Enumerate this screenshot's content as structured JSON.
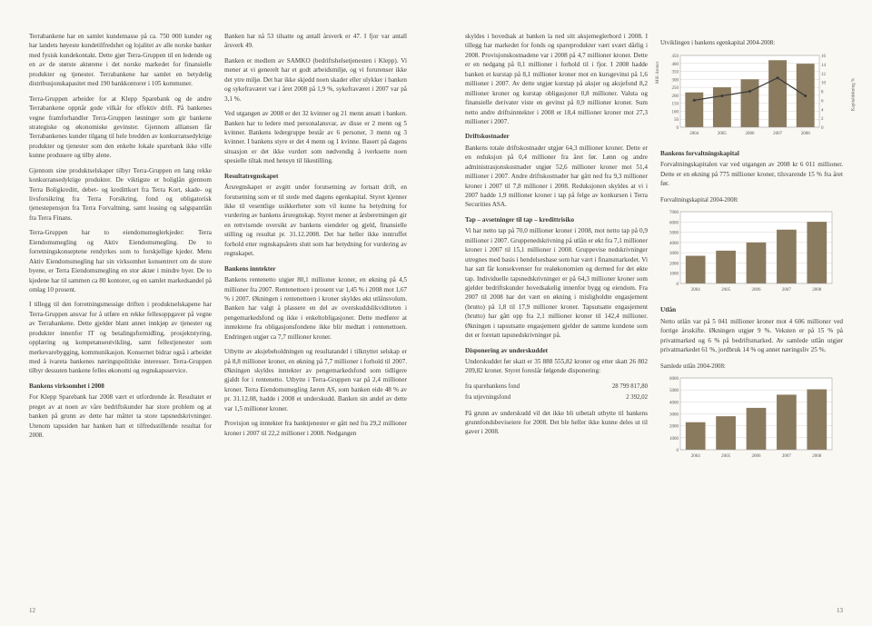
{
  "left_page": {
    "page_num": "12",
    "col1": {
      "p1": "Terrabankene har en samlet kundemasse på ca. 750 000 kunder og har landets høyeste kundetilfredshet og lojalitet av alle norske banker med fysisk kundekontakt. Dette gjør Terra-Gruppen til en ledende og en av de største aktørene i det norske markedet for finansielle produkter og tjenester. Terrabankene har samlet en betydelig distribusjonskapasitet med 190 bankkontorer i 105 kommuner.",
      "p2": "Terra-Gruppen arbeider for at Klepp Sparebank og de andre Terrabankene oppnår gode vilkår for effektiv drift. På bankenes vegne framforhandler Terra-Gruppen løsninger som gir bankene strategiske og økonomiske gevinster. Gjennom alliansen får Terrabankenes kunder tilgang til hele bredden av konkurransedyktige produkter og tjenester som den enkelte lokale sparebank ikke ville kunne produsere og tilby alene.",
      "p3": "Gjennom sine produktselskaper tilbyr Terra-Gruppen en lang rekke konkurransedyktige produkter. De viktigste er boliglån gjennom Terra Boligkreditt, debet- og kredittkort fra Terra Kort, skade- og livsforsikring fra Terra Forsikring, fond og obligatorisk tjenestepensjon fra Terra Forvaltning, samt leasing og salgspantlån fra Terra Finans.",
      "p4": "Terra-Gruppen har to eiendomsmeglerkjeder: Terra Eiendomsmegling og Aktiv Eiendomsmegling. De to forretningskonseptene rendyrkes som to forskjellige kjeder. Mens Aktiv Eiendomsmegling har sin virksomhet konsentrert om de store byene, er Terra Eiendomsmegling en stor aktør i mindre byer. De to kjedene har til sammen ca 80 kontorer, og en samlet markedsandel på omlag 10 prosent.",
      "p5": "I tillegg til den forretningsmessige driften i produktselskapene har Terra-Gruppen ansvar for å utføre en rekke fellesoppgaver på vegne av Terrabankene. Dette gjelder blant annet innkjøp av tjenester og produkter innenfor IT og betalingsformidling, prosjektstyring, opplæring og kompetanseutvikling, samt fellestjenester som merkevarebygging, kommunikasjon. Konsernet bidrar også i arbeidet med å ivareta bankenes næringspolitiske interesser. Terra-Gruppen tilbyr dessuten bankene felles økonomi og regnskapsservice.",
      "h1": "Bankens virksomhet i 2008",
      "p6": "For Klepp Sparebank har 2008 vært et utfordrende år. Resultatet er preget av at noen av våre bedriftskunder har store problem og at banken på grunn av dette har måttet ta store tapsnedskrivninger. Utenom tapssiden har banken hatt et tilfredsstillende resultat for 2008."
    },
    "col2": {
      "p1": "Banken har nå 53 tilsatte og antall årsverk er 47. I fjor var antall årsverk 49.",
      "p2": "Banken er medlem av SAMKO (bedriftshelsetjenesten i Klepp). Vi mener at vi generelt har et godt arbeidsmiljø, og vi forurenser ikke det ytre miljø. Det har ikke skjedd noen skader eller ulykker i banken og sykefraværet var i året 2008 på 1,9 %, sykefraværet i 2007 var på 3,1 %.",
      "p3": "Ved utgangen av 2008 er det 32 kvinner og 21 menn ansatt i banken. Banken har to ledere med personalansvar, av disse er 2 menn og 5 kvinner. Bankens ledergruppe består av 6 personer, 3 menn og 3 kvinner. I bankens styre er det 4 menn og 1 kvinne. Basert på dagens situasjon er det ikke vurdert som nødvendig å iverksette noen spesielle tiltak med hensyn til likestilling.",
      "h1": "Resultatregnskapet",
      "p4": "Årsregnskapet er avgitt under forutsetning av fortsatt drift, en forutsetning som er til stede med dagens egenkapital. Styret kjenner ikke til vesentlige usikkerheter som vil kunne ha betydning for vurdering av bankens årsregnskap. Styret mener at årsberetningen gir en rettvisende oversikt av bankens eiendeler og gjeld, finansielle stilling og resultat pr. 31.12.2008. Det har heller ikke inntruffet forhold etter regnskapsårets slutt som har betydning for vurdering av regnskapet.",
      "h2": "Bankens inntekter",
      "p5": "Bankens rentenetto utgjør 80,1 millioner kroner, en økning på 4,5 millioner fra 2007. Rentenettoen i prosent var 1,45 % i 2008 mot 1,67 % i 2007. Økningen i rentenettoen i kroner skyldes økt utlånsvolum. Banken har valgt å plassere en del av overskuddslikviditeten i pengemarkedsfond og ikke i enkeltobligasjoner. Dette medfører at inntektene fra obligasjonsfondene ikke blir medtatt i rentenettoen. Endringen utgjør ca 7,7 millioner kroner.",
      "p6": "Utbytte av aksjebeholdningen og resultatandel i tilknyttet selskap er på 8,8 millioner kroner, en økning på 7,7 millioner i forhold til 2007. Økningen skyldes inntekter av pengemarkedsfond som tidligere gjaldt for i rentenetto. Utbytte i Terra-Gruppen var på 2,4 millioner kroner. Terra Eiendomsmegling Jæren AS, som banken eide 48 % av pr. 31.12.08, hadde i 2008 et underskudd. Banken sin andel av dette var 1,5 millioner kroner.",
      "p7": "Provisjon og inntekter fra banktjenester er gått ned fra 29,2 millioner kroner i 2007 til 22,2 millioner i 2008. Nedgangen "
    }
  },
  "right_page": {
    "page_num": "13",
    "col1": {
      "p1": "skyldes i hovedsak at banken la ned sitt aksjemeglerbord i 2008. I tillegg har markedet for fonds og spareprodukter vært svært dårlig i 2008. Provisjonskostnadene var i 2008 på 4,7 millioner kroner. Dette er en nedgang på 0,1 millioner i forhold til i fjor. I 2008 hadde banken et kurstap på 8,1 millioner kroner mot en kursgevinst på 1,6 millioner i 2007. Av dette utgjør kurstap på aksjer og aksjefond 8,2 millioner kroner og kurstap obligasjoner 0,8 millioner. Valuta og finansielle derivater viste en gevinst på 0,9 millioner kroner. Sum netto andre driftsinntekter i 2008 er 18,4 millioner kroner mot 27,3 millioner i 2007.",
      "h1": "Driftskostnader",
      "p2": "Bankens totale driftskostnader utgjør 64,3 millioner kroner. Dette er en reduksjon på 0,4 millioner fra året før. Lønn og andre administrasjonskostnader utgjør 52,6 millioner kroner mot 51,4 millioner i 2007. Andre driftskostnader har gått ned fra 9,3 millioner kroner i 2007 til 7,8 millioner i 2008. Reduksjonen skyldes at vi i 2007 hadde 1,9 millioner kroner i tap på felge av konkursen i Terra Securities ASA.",
      "h2": "Tap – avsetninger til tap – kredittrisiko",
      "p3": "Vi har netto tap på 70,0 millioner kroner i 2008, mot netto tap på 0,9 millioner i 2007. Gruppenedskrivning på utlån er økt fra 7,1 millioner kroner i 2007 til 15,1 millioner i 2008. Gruppevise nedskrivninger utregnes med basis i hendelsesbase som har vært i finansmarkedet. Vi har satt får konsekvenser for realøkonomien og dermed for det økte tap. Individuelle tapsnedskrivninger er på 64,3 millioner kroner som gjelder bedriftskunder hovedsakelig innenfor bygg og eiendom. Fra 2007 til 2008 har det vært en økning i misligholdte engasjement (brutto) på 1,8 til 17,9 millioner kroner. Tapsutsatte engasjement (brutto) har gått opp fra 2,1 millioner kroner til 142,4 millioner. Økningen i tapsutsatte engasjement gjelder de samme kundene som det er foretatt tapsnedskrivninger på.",
      "h3": "Disponering av underskuddet",
      "p4": "Underskuddet før skatt er 35 888 555,82 kroner og etter skatt 26 802 209,82 kroner. Styret foreslår følgende disponering:",
      "table": {
        "rows": [
          [
            "fra sparebankens fond",
            "28 799 817,80"
          ],
          [
            "fra utjevningsfond",
            "2 392,02"
          ]
        ]
      },
      "p5": "På grunn av underskudd vil det ikke bli utbetalt utbytte til bankens grunnfondsbeviseiere for 2008. Det ble heller ikke kunne deles ut til gaver i 2008."
    },
    "col2": {
      "chart1": {
        "title": "Utviklingen i bankens egenkapital 2004-2008:",
        "type": "bar",
        "categories": [
          "2004",
          "2005",
          "2006",
          "2007",
          "2008"
        ],
        "bars": [
          218,
          250,
          300,
          420,
          398
        ],
        "line": [
          6,
          7,
          8,
          11,
          7
        ],
        "bar_color": "#8a7a5e",
        "line_color": "#3a3a38",
        "ylim_left": [
          0,
          450
        ],
        "ylim_right": [
          0,
          16
        ],
        "ytick_left": [
          0,
          50,
          100,
          150,
          200,
          250,
          300,
          350,
          400,
          450
        ],
        "ytick_right": [
          0,
          2,
          4,
          6,
          8,
          10,
          12,
          14,
          16
        ],
        "ylabel_left": "Mill. kroner",
        "ylabel_right": "Kapitaldekning %",
        "background_color": "#ffffff",
        "grid_color": "#d8d4cc"
      },
      "h1": "Bankens forvaltningskapital",
      "p1": "Forvaltningskapitalen var ved utgangen av 2008 kr 6 011 millioner. Dette er en økning på 775 millioner kroner, tilsvarende 15 % fra året før.",
      "chart2": {
        "title": "Forvaltningskapital 2004-2008:",
        "type": "bar",
        "categories": [
          "2004",
          "2005",
          "2006",
          "2007",
          "2008"
        ],
        "values": [
          2700,
          3200,
          4000,
          5250,
          6010
        ],
        "bar_color": "#8a7a5e",
        "ylim": [
          0,
          7000
        ],
        "ytick": [
          0,
          1000,
          2000,
          3000,
          4000,
          5000,
          6000,
          7000
        ],
        "background_color": "#ffffff",
        "grid_color": "#d8d4cc"
      },
      "h2": "Utlån",
      "p2": "Netto utlån var på 5 041 millioner kroner mot 4 606 millioner ved forrige årsskifte. Økningen utgjør 9 %. Veksten er på 15 % på privatmarked og 6 % på bedriftsmarked. Av samlede utlån utgjør privatmarkedet 61 %, jordbruk 14 % og annet næringsliv 25 %.",
      "chart3": {
        "title": "Samlede utlån 2004-2008:",
        "type": "bar",
        "categories": [
          "2004",
          "2005",
          "2006",
          "2007",
          "2008"
        ],
        "values": [
          2300,
          2800,
          3500,
          4600,
          5050
        ],
        "bar_color": "#8a7a5e",
        "ylim": [
          0,
          6000
        ],
        "ytick": [
          0,
          1000,
          2000,
          3000,
          4000,
          5000,
          6000
        ],
        "background_color": "#ffffff",
        "grid_color": "#d8d4cc"
      }
    }
  }
}
